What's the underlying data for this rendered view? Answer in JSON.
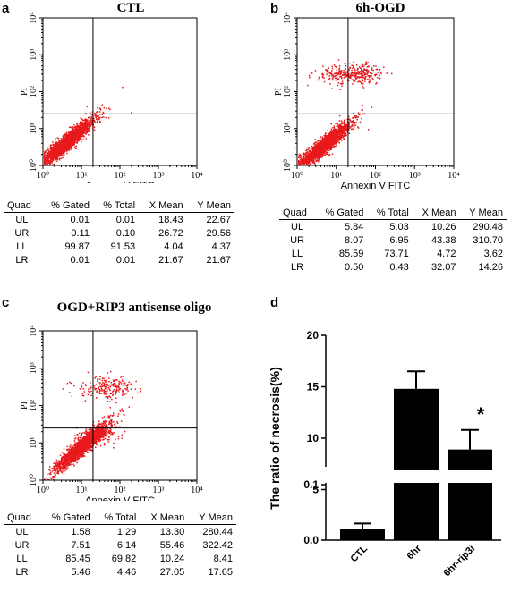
{
  "panels": [
    {
      "letter": "a",
      "title": "CTL",
      "xlabel": "Annexin V FITC",
      "ylabel": "PI",
      "headers": [
        "Quad",
        "% Gated",
        "% Total",
        "X Mean",
        "Y Mean"
      ],
      "rows": [
        [
          "UL",
          "0.01",
          "0.01",
          "18.43",
          "22.67"
        ],
        [
          "UR",
          "0.11",
          "0.10",
          "26.72",
          "29.56"
        ],
        [
          "LL",
          "99.87",
          "91.53",
          "4.04",
          "4.37"
        ],
        [
          "LR",
          "0.01",
          "0.01",
          "21.67",
          "21.67"
        ]
      ]
    },
    {
      "letter": "b",
      "title": "6h-OGD",
      "xlabel": "Annexin V FITC",
      "ylabel": "PI",
      "headers": [
        "Quad",
        "% Gated",
        "% Total",
        "X Mean",
        "Y Mean"
      ],
      "rows": [
        [
          "UL",
          "5.84",
          "5.03",
          "10.26",
          "290.48"
        ],
        [
          "UR",
          "8.07",
          "6.95",
          "43.38",
          "310.70"
        ],
        [
          "LL",
          "85.59",
          "73.71",
          "4.72",
          "3.62"
        ],
        [
          "LR",
          "0.50",
          "0.43",
          "32.07",
          "14.26"
        ]
      ]
    },
    {
      "letter": "c",
      "title": "OGD+RIP3 antisense oligo",
      "xlabel": "Annexin V FITC",
      "ylabel": "PI",
      "headers": [
        "Quad",
        "% Gated",
        "% Total",
        "X Mean",
        "Y Mean"
      ],
      "rows": [
        [
          "UL",
          "1.58",
          "1.29",
          "13.30",
          "280.44"
        ],
        [
          "UR",
          "7.51",
          "6.14",
          "55.46",
          "322.42"
        ],
        [
          "LL",
          "85.45",
          "69.82",
          "10.24",
          "8.41"
        ],
        [
          "LR",
          "5.46",
          "4.46",
          "27.05",
          "17.65"
        ]
      ]
    }
  ],
  "panel_d_letter": "d",
  "colors": {
    "dots": "#e8191c",
    "bars": "#000000"
  },
  "chart_data": [
    {
      "type": "scatter",
      "title": "CTL",
      "xlabel": "Annexin V FITC",
      "ylabel": "PI",
      "x_scale": "log",
      "y_scale": "log",
      "xlim": [
        1,
        10000
      ],
      "ylim": [
        1,
        10000
      ],
      "quadrant_gate": {
        "x": 20,
        "y": 25
      },
      "populations": [
        {
          "name": "LL",
          "percent_gated": 99.87,
          "x_mean": 4.04,
          "y_mean": 4.37
        },
        {
          "name": "UL",
          "percent_gated": 0.01,
          "x_mean": 18.43,
          "y_mean": 22.67
        },
        {
          "name": "UR",
          "percent_gated": 0.11,
          "x_mean": 26.72,
          "y_mean": 29.56
        },
        {
          "name": "LR",
          "percent_gated": 0.01,
          "x_mean": 21.67,
          "y_mean": 21.67
        }
      ]
    },
    {
      "type": "scatter",
      "title": "6h-OGD",
      "xlabel": "Annexin V FITC",
      "ylabel": "PI",
      "x_scale": "log",
      "y_scale": "log",
      "xlim": [
        1,
        10000
      ],
      "ylim": [
        1,
        10000
      ],
      "quadrant_gate": {
        "x": 20,
        "y": 25
      },
      "populations": [
        {
          "name": "LL",
          "percent_gated": 85.59,
          "x_mean": 4.72,
          "y_mean": 3.62
        },
        {
          "name": "UL",
          "percent_gated": 5.84,
          "x_mean": 10.26,
          "y_mean": 290.48
        },
        {
          "name": "UR",
          "percent_gated": 8.07,
          "x_mean": 43.38,
          "y_mean": 310.7
        },
        {
          "name": "LR",
          "percent_gated": 0.5,
          "x_mean": 32.07,
          "y_mean": 14.26
        }
      ]
    },
    {
      "type": "scatter",
      "title": "OGD+RIP3 antisense oligo",
      "xlabel": "Annexin V FITC",
      "ylabel": "PI",
      "x_scale": "log",
      "y_scale": "log",
      "xlim": [
        1,
        10000
      ],
      "ylim": [
        1,
        10000
      ],
      "quadrant_gate": {
        "x": 20,
        "y": 25
      },
      "populations": [
        {
          "name": "LL",
          "percent_gated": 85.45,
          "x_mean": 10.24,
          "y_mean": 8.41
        },
        {
          "name": "UL",
          "percent_gated": 1.58,
          "x_mean": 13.3,
          "y_mean": 280.44
        },
        {
          "name": "UR",
          "percent_gated": 7.51,
          "x_mean": 55.46,
          "y_mean": 322.42
        },
        {
          "name": "LR",
          "percent_gated": 5.46,
          "x_mean": 27.05,
          "y_mean": 17.65
        }
      ]
    },
    {
      "type": "bar",
      "categories": [
        "CTL",
        "6hr",
        "6hr-rip3i"
      ],
      "values": [
        0.02,
        14.8,
        8.9
      ],
      "errors": [
        0.01,
        1.7,
        1.9
      ],
      "ylabel": "The ratio of necrosis(%)",
      "y_axis_break": true,
      "lower_segment": {
        "ylim": [
          0,
          0.1
        ],
        "ticks": [
          "0.0",
          "0.1"
        ]
      },
      "upper_segment": {
        "ylim": [
          0,
          20
        ],
        "ticks": [
          "5",
          "10",
          "15",
          "20"
        ]
      },
      "annotations": [
        {
          "category": "6hr-rip3i",
          "text": "*"
        }
      ]
    }
  ]
}
